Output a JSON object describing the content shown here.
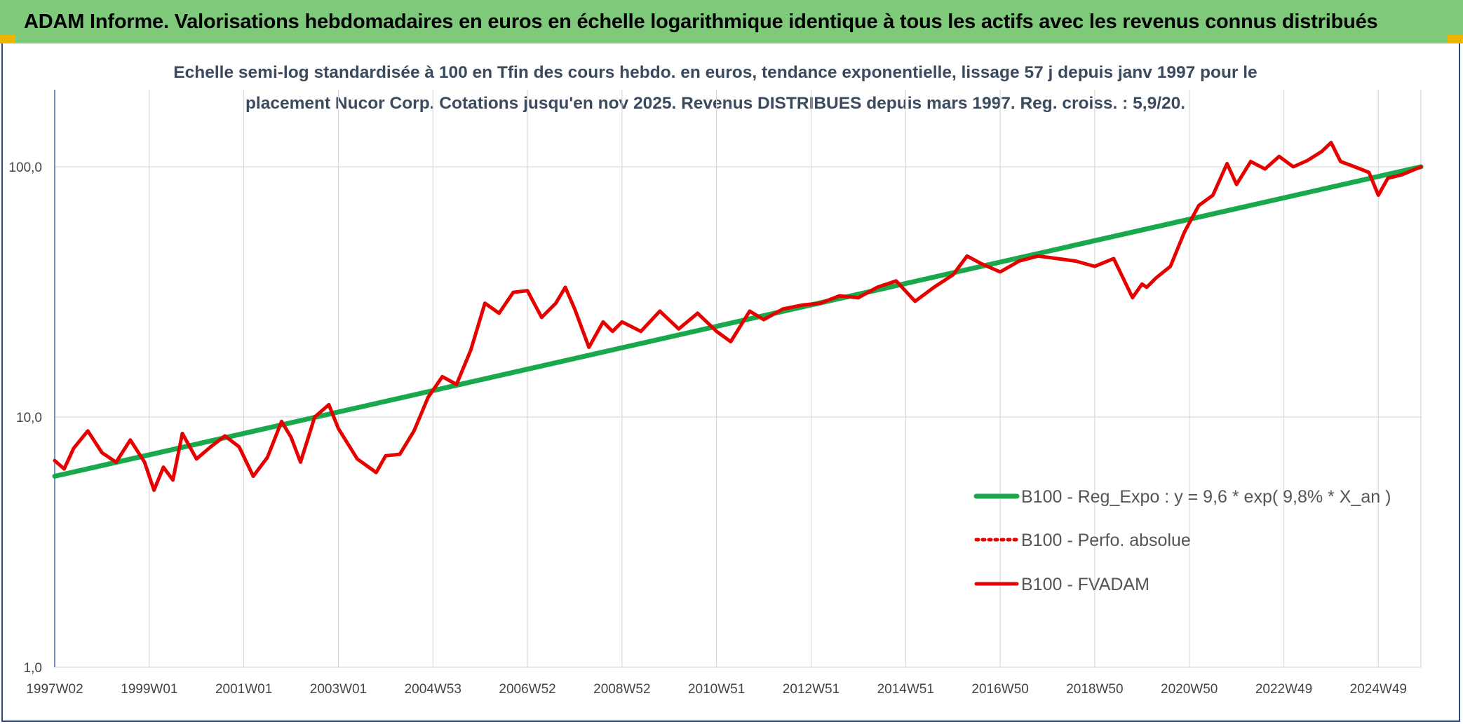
{
  "banner": {
    "title": "ADAM Informe. Valorisations hebdomadaires en euros en échelle logarithmique identique à tous les actifs avec les revenus connus distribués"
  },
  "chart_data": {
    "type": "line",
    "title": "Echelle semi-log standardisée à 100 en Tfin des cours hebdo. en euros, tendance exponentielle, lissage 57 j depuis janv 1997 pour le placement Nucor Corp. Cotations jusqu'en nov 2025. Revenus DISTRIBUES depuis mars 1997. Reg. croiss. : 5,9/20.",
    "xlabel": "",
    "ylabel": "",
    "y_scale": "log",
    "ylim": [
      1,
      180
    ],
    "xlim": [
      1997.0,
      2025.9
    ],
    "y_ticks": [
      {
        "value": 1,
        "label": "1,0"
      },
      {
        "value": 10,
        "label": "10,0"
      },
      {
        "value": 100,
        "label": "100,0"
      }
    ],
    "x_ticks": [
      {
        "value": 1997.0,
        "label": "1997W02"
      },
      {
        "value": 1999.0,
        "label": "1999W01"
      },
      {
        "value": 2001.0,
        "label": "2001W01"
      },
      {
        "value": 2003.0,
        "label": "2003W01"
      },
      {
        "value": 2005.0,
        "label": "2004W53"
      },
      {
        "value": 2007.0,
        "label": "2006W52"
      },
      {
        "value": 2009.0,
        "label": "2008W52"
      },
      {
        "value": 2011.0,
        "label": "2010W51"
      },
      {
        "value": 2013.0,
        "label": "2012W51"
      },
      {
        "value": 2015.0,
        "label": "2014W51"
      },
      {
        "value": 2017.0,
        "label": "2016W50"
      },
      {
        "value": 2019.0,
        "label": "2018W50"
      },
      {
        "value": 2021.0,
        "label": "2020W50"
      },
      {
        "value": 2023.0,
        "label": "2022W49"
      },
      {
        "value": 2025.0,
        "label": "2024W49"
      }
    ],
    "grid": true,
    "legend_position": "bottom-right",
    "series": [
      {
        "name": "B100 - Reg_Expo : y = 9,6 * exp( 9,8% *  X_an )",
        "color": "#1aa84c",
        "style": "solid",
        "x": [
          1997.0,
          2025.9
        ],
        "y": [
          5.8,
          100.0
        ]
      },
      {
        "name": "B100 - Perfo. absolue",
        "color": "#e60000",
        "style": "dotted",
        "x": [],
        "y": []
      },
      {
        "name": "B100 - FVADAM",
        "color": "#e60000",
        "style": "solid",
        "x": [
          1997.0,
          1997.2,
          1997.4,
          1997.7,
          1998.0,
          1998.3,
          1998.6,
          1998.9,
          1999.1,
          1999.3,
          1999.5,
          1999.7,
          2000.0,
          2000.3,
          2000.6,
          2000.9,
          2001.2,
          2001.5,
          2001.8,
          2002.0,
          2002.2,
          2002.5,
          2002.8,
          2003.0,
          2003.4,
          2003.8,
          2004.0,
          2004.3,
          2004.6,
          2004.9,
          2005.2,
          2005.5,
          2005.8,
          2006.1,
          2006.4,
          2006.7,
          2007.0,
          2007.3,
          2007.6,
          2007.8,
          2008.0,
          2008.3,
          2008.6,
          2008.8,
          2009.0,
          2009.4,
          2009.8,
          2010.2,
          2010.6,
          2011.0,
          2011.3,
          2011.7,
          2012.0,
          2012.4,
          2012.8,
          2013.2,
          2013.6,
          2014.0,
          2014.4,
          2014.8,
          2015.2,
          2015.6,
          2016.0,
          2016.3,
          2016.6,
          2017.0,
          2017.4,
          2017.8,
          2018.2,
          2018.6,
          2019.0,
          2019.4,
          2019.8,
          2020.0,
          2020.1,
          2020.3,
          2020.6,
          2020.9,
          2021.2,
          2021.5,
          2021.8,
          2022.0,
          2022.3,
          2022.6,
          2022.9,
          2023.2,
          2023.5,
          2023.8,
          2024.0,
          2024.2,
          2024.5,
          2024.8,
          2025.0,
          2025.2,
          2025.5,
          2025.9
        ],
        "y": [
          6.7,
          6.2,
          7.5,
          8.8,
          7.2,
          6.6,
          8.1,
          6.6,
          5.1,
          6.3,
          5.6,
          8.6,
          6.8,
          7.6,
          8.4,
          7.6,
          5.8,
          6.9,
          9.6,
          8.3,
          6.6,
          10.0,
          11.2,
          9.0,
          6.8,
          6.0,
          7.0,
          7.1,
          8.8,
          12.0,
          14.5,
          13.5,
          18.5,
          28.5,
          26.0,
          31.5,
          32.0,
          25.0,
          28.5,
          33.0,
          27.0,
          19.0,
          24.0,
          22.0,
          24.0,
          22.0,
          26.5,
          22.5,
          26.0,
          22.0,
          20.0,
          26.5,
          24.5,
          27.0,
          28.0,
          28.5,
          30.5,
          30.0,
          33.0,
          35.0,
          29.0,
          33.0,
          37.0,
          44.0,
          41.0,
          38.0,
          42.0,
          44.0,
          43.0,
          42.0,
          40.0,
          43.0,
          30.0,
          34.0,
          33.0,
          36.0,
          40.0,
          55.0,
          70.0,
          77.0,
          103.0,
          85.0,
          105.0,
          98.0,
          110.0,
          100.0,
          106.0,
          115.0,
          125.0,
          105.0,
          100.0,
          95.0,
          77.0,
          90.0,
          93.0,
          100.0
        ]
      }
    ]
  }
}
